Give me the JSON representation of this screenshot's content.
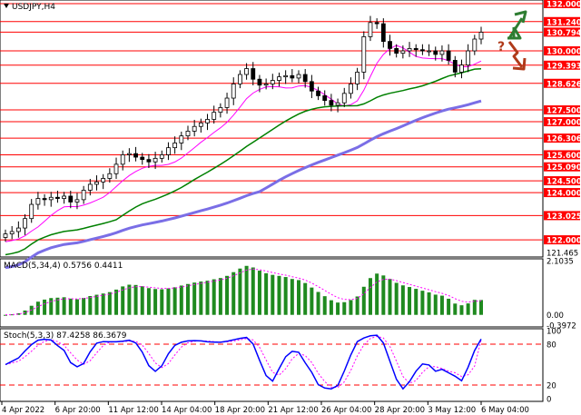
{
  "window": {
    "title": "USDJPY,H4",
    "dropdown_icon": "chart-menu-triangle-icon"
  },
  "price_axis": {
    "ticks": [
      "132.000",
      "131.240",
      "130.794",
      "130.000",
      "129.393",
      "128.626",
      "127.500",
      "127.000",
      "126.306",
      "125.600",
      "125.090",
      "124.500",
      "124.000",
      "123.025",
      "122.000",
      "121.465"
    ],
    "highlighted": [
      "132.000",
      "131.240",
      "130.794",
      "130.000",
      "129.393",
      "128.626",
      "127.500",
      "127.000",
      "126.306",
      "125.600",
      "125.090",
      "124.500",
      "124.000",
      "123.025",
      "122.000"
    ]
  },
  "scenario": {
    "question_mark": "?",
    "up_arrow_icon": "green-up-arrow-icon",
    "down_arrow_icon": "red-down-arrow-icon",
    "up_color": "#2e7d32",
    "down_color": "#b03a1a",
    "question_color": "#b03a1a"
  },
  "macd": {
    "label": "MACD(5,34,4) 0.5756 0.4411",
    "axis": [
      "2.1035",
      "0.00",
      "-0.3972"
    ],
    "hist_color": "#1f8a1f",
    "signal_color": "#ff00ff"
  },
  "stoch": {
    "label": "Stoch(5,3,3) 87.4258 86.3679",
    "axis": [
      "100",
      "80",
      "20",
      "0"
    ],
    "main_color": "#0000ff",
    "signal_color": "#ff00ff",
    "level_color": "#ff0000"
  },
  "time_axis": [
    "4 Apr 2022",
    "6 Apr 20:00",
    "11 Apr 12:00",
    "14 Apr 04:00",
    "18 Apr 20:00",
    "21 Apr 12:00",
    "26 Apr 04:00",
    "28 Apr 20:00",
    "3 May 12:00",
    "6 May 04:00"
  ],
  "colors": {
    "level_line": "#ff0000",
    "ma_fast": "#ff00ff",
    "ma_mid": "#008000",
    "ma_slow": "#7a6ee6",
    "price_label_bg": "#ff0000"
  },
  "chart_data": {
    "type": "candlestick",
    "symbol": "USDJPY",
    "timeframe": "H4",
    "ylim": [
      121.465,
      132.0
    ],
    "moving_averages": [
      "magenta",
      "green",
      "slate-blue"
    ],
    "macd_params": [
      5,
      34,
      4
    ],
    "macd_main": 0.5756,
    "macd_signal": 0.4411,
    "macd_range": [
      -0.3972,
      2.1035
    ],
    "stoch_params": [
      5,
      3,
      3
    ],
    "stoch_main": 87.4258,
    "stoch_signal": 86.3679,
    "stoch_levels": [
      20,
      80
    ],
    "support_resistance": [
      132.0,
      131.24,
      130.794,
      130.0,
      129.393,
      128.626,
      127.5,
      127.0,
      126.306,
      125.6,
      125.09,
      124.5,
      124.0,
      123.025,
      122.0
    ],
    "closes": [
      122.25,
      122.35,
      122.5,
      122.9,
      123.5,
      123.75,
      123.7,
      123.8,
      123.75,
      123.85,
      123.6,
      123.7,
      124.1,
      124.35,
      124.45,
      124.6,
      124.8,
      125.2,
      125.6,
      125.65,
      125.5,
      125.4,
      125.3,
      125.45,
      125.6,
      125.9,
      126.1,
      126.4,
      126.6,
      126.8,
      126.95,
      127.1,
      127.4,
      127.6,
      128.0,
      128.6,
      129.0,
      129.25,
      128.8,
      128.55,
      128.6,
      128.75,
      128.9,
      128.95,
      128.85,
      129.0,
      128.7,
      128.3,
      128.1,
      127.9,
      127.7,
      127.8,
      128.2,
      128.6,
      129.1,
      130.6,
      131.2,
      131.15,
      130.4,
      130.1,
      129.9,
      130.0,
      130.1,
      130.05,
      130.0,
      130.0,
      129.85,
      130.0,
      129.6,
      129.1,
      129.4,
      130.0,
      130.5,
      130.79
    ]
  }
}
